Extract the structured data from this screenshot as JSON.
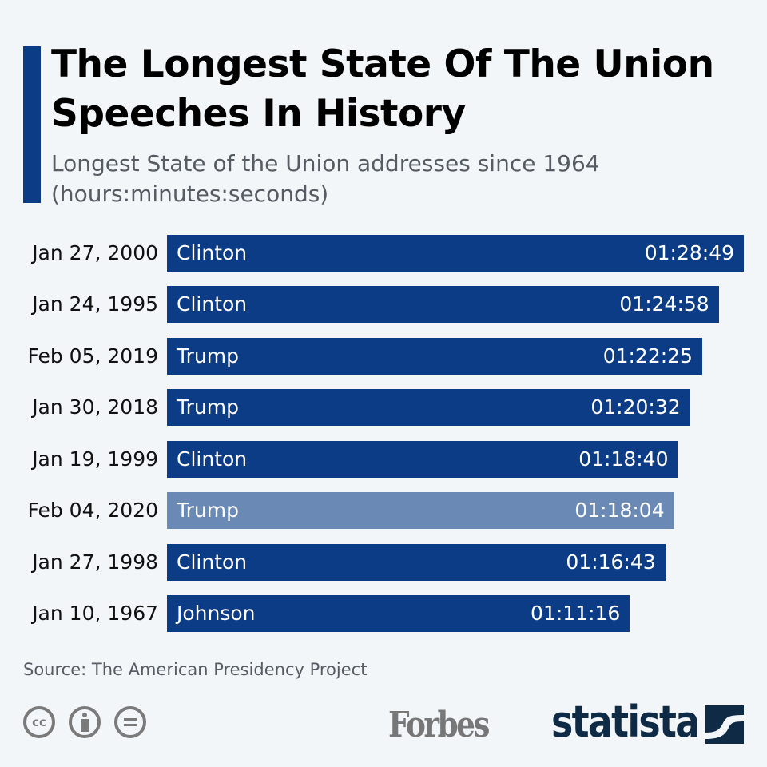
{
  "chart_data": {
    "type": "bar",
    "orientation": "horizontal",
    "title": "The Longest State Of The Union Speeches In History",
    "subtitle": "Longest State of the Union addresses since 1964 (hours:minutes:seconds)",
    "categories": [
      "Jan 27, 2000",
      "Jan 24, 1995",
      "Feb 05, 2019",
      "Jan 30, 2018",
      "Jan 19, 1999",
      "Feb 04, 2020",
      "Jan 27, 1998",
      "Jan 10, 1967"
    ],
    "presidents": [
      "Clinton",
      "Clinton",
      "Trump",
      "Trump",
      "Clinton",
      "Trump",
      "Clinton",
      "Johnson"
    ],
    "labels": [
      "01:28:49",
      "01:24:58",
      "01:22:25",
      "01:20:32",
      "01:18:40",
      "01:18:04",
      "01:16:43",
      "01:11:16"
    ],
    "values_seconds": [
      5329,
      5098,
      4945,
      4832,
      4720,
      4684,
      4603,
      4276
    ],
    "highlighted_index": 5,
    "xlim": [
      0,
      5329
    ],
    "grid": false,
    "colors": {
      "bar": "#0c3c85",
      "highlight": "#6a8ab5",
      "accent": "#0c3c85"
    }
  },
  "source": "Source: The American Presidency Project",
  "logos": {
    "forbes": "Forbes",
    "statista": "statista",
    "license_icons": [
      "cc-icon",
      "attribution-icon",
      "no-derivatives-icon"
    ]
  }
}
